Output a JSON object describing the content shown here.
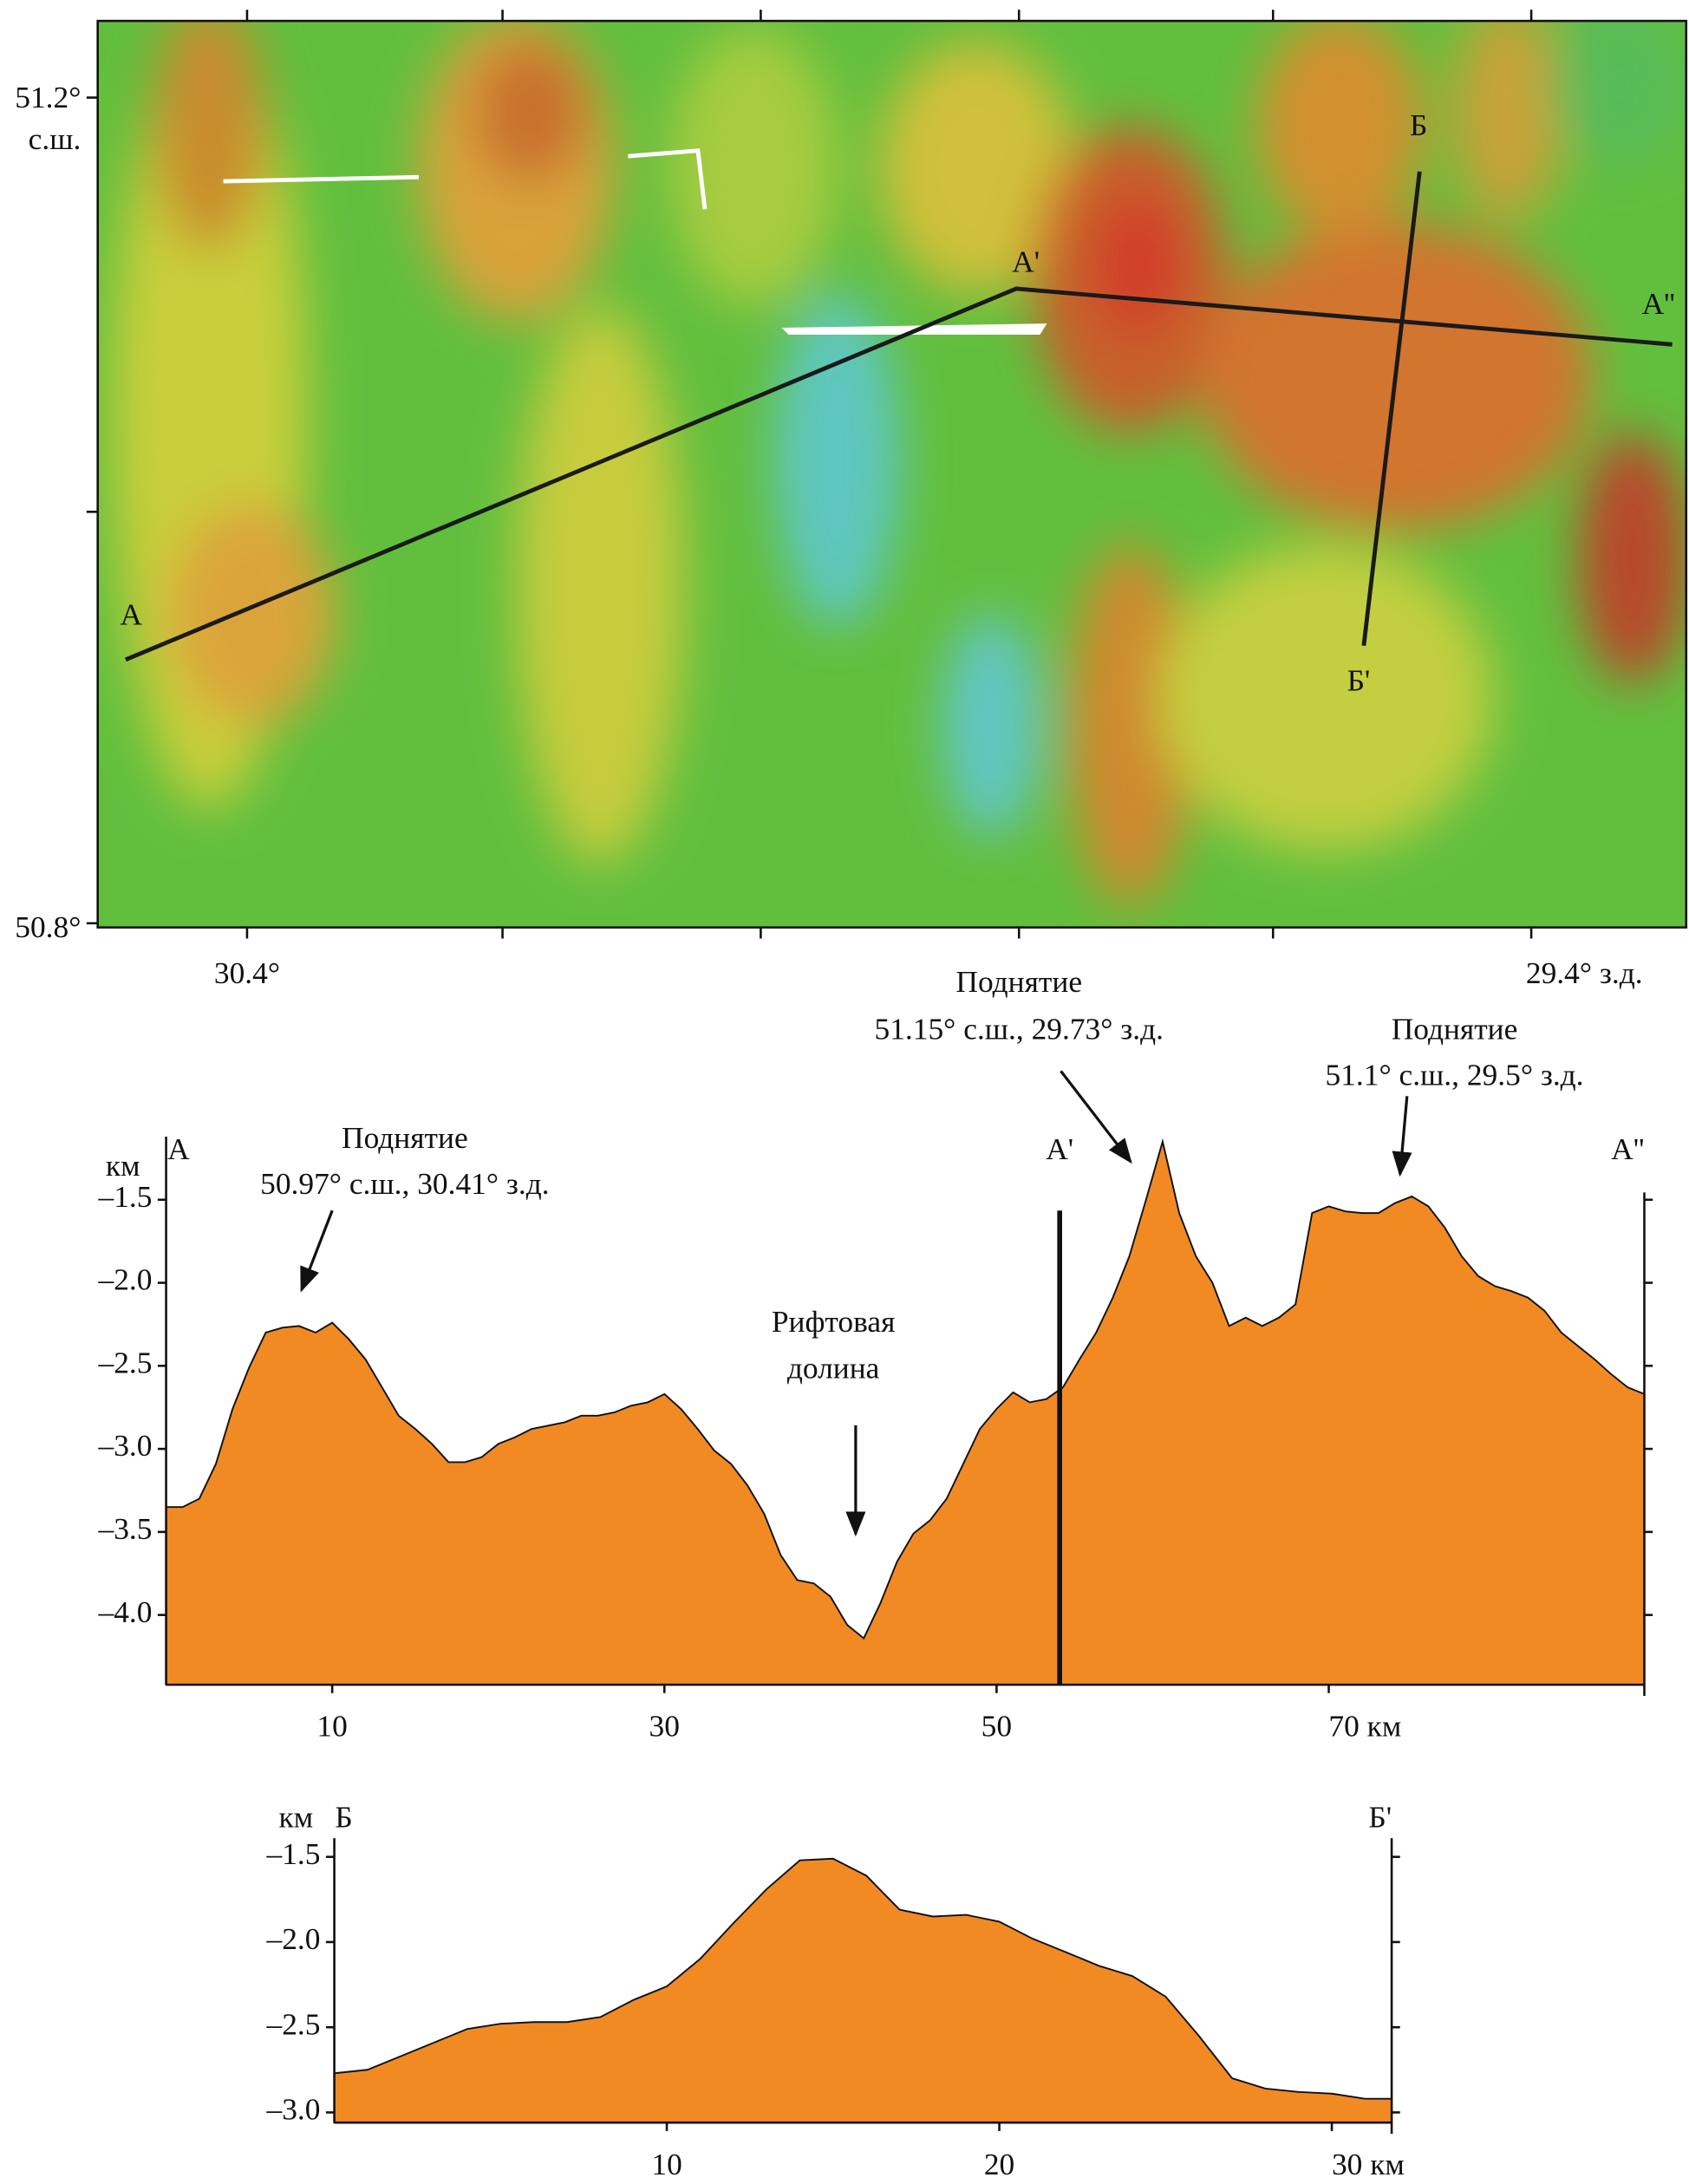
{
  "map": {
    "lat_labels": [
      "51.2°",
      "с.ш.",
      "50.8°"
    ],
    "lon_labels": [
      "30.4°",
      "29.4° з.д."
    ],
    "point_labels": [
      "А",
      "А'",
      "А''",
      "Б",
      "Б'"
    ]
  },
  "chart_data": [
    {
      "type": "area",
      "color": "#f28a24",
      "y_label": "км",
      "end_labels": [
        "А",
        "А''"
      ],
      "section_marker": {
        "label": "А'",
        "x": 53.8
      },
      "annotations": [
        [
          "Поднятие",
          "50.97° с.ш., 30.41° з.д."
        ],
        [
          "Рифтовая",
          "долина"
        ],
        [
          "Поднятие",
          "51.15° с.ш., 29.73° з.д."
        ],
        [
          "Поднятие",
          "51.1° с.ш., 29.5° з.д."
        ]
      ],
      "x": [
        0,
        1,
        2,
        3,
        4,
        5,
        6,
        7,
        8,
        9,
        10,
        11,
        12,
        13,
        14,
        15,
        16,
        17,
        18,
        19,
        20,
        21,
        22,
        23,
        24,
        25,
        26,
        27,
        28,
        29,
        30,
        31,
        32,
        33,
        34,
        35,
        36,
        37,
        38,
        39,
        40,
        41,
        42,
        43,
        44,
        45,
        46,
        47,
        48,
        49,
        50,
        51,
        52,
        53,
        54,
        55,
        56,
        57,
        58,
        59,
        60,
        61,
        62,
        63,
        64,
        65,
        66,
        67,
        68,
        69,
        70,
        71,
        72,
        73,
        74,
        75,
        76,
        77,
        78,
        79,
        80,
        81,
        82,
        83,
        84,
        85,
        86,
        87,
        88,
        89
      ],
      "values": [
        -3.35,
        -3.35,
        -3.3,
        -3.09,
        -2.76,
        -2.51,
        -2.3,
        -2.27,
        -2.26,
        -2.3,
        -2.24,
        -2.34,
        -2.46,
        -2.63,
        -2.8,
        -2.88,
        -2.97,
        -3.08,
        -3.08,
        -3.05,
        -2.97,
        -2.93,
        -2.88,
        -2.86,
        -2.84,
        -2.8,
        -2.8,
        -2.78,
        -2.74,
        -2.72,
        -2.67,
        -2.76,
        -2.88,
        -3.01,
        -3.09,
        -3.22,
        -3.39,
        -3.64,
        -3.79,
        -3.81,
        -3.89,
        -4.06,
        -4.14,
        -3.93,
        -3.68,
        -3.51,
        -3.43,
        -3.3,
        -3.09,
        -2.88,
        -2.76,
        -2.66,
        -2.72,
        -2.7,
        -2.63,
        -2.46,
        -2.3,
        -2.09,
        -1.84,
        -1.5,
        -1.15,
        -1.58,
        -1.84,
        -2.0,
        -2.26,
        -2.21,
        -2.26,
        -2.21,
        -2.13,
        -1.58,
        -1.54,
        -1.57,
        -1.58,
        -1.58,
        -1.52,
        -1.48,
        -1.54,
        -1.67,
        -1.84,
        -1.96,
        -2.02,
        -2.05,
        -2.09,
        -2.17,
        -2.3,
        -2.38,
        -2.46,
        -2.55,
        -2.63,
        -2.67
      ],
      "xlim": [
        0,
        89
      ],
      "ylim": [
        -4.42,
        -1.12
      ],
      "xticks": [
        10,
        30,
        50,
        {
          "value": 70,
          "label": "70 км"
        }
      ],
      "yticks": [
        {
          "value": -1.5,
          "label": "–1.5"
        },
        {
          "value": -2.0,
          "label": "–2.0"
        },
        {
          "value": -2.5,
          "label": "–2.5"
        },
        {
          "value": -3.0,
          "label": "–3.0"
        },
        {
          "value": -3.5,
          "label": "–3.5"
        },
        {
          "value": -4.0,
          "label": "–4.0"
        }
      ]
    },
    {
      "type": "area",
      "color": "#f28a24",
      "y_label": "км",
      "end_labels": [
        "Б",
        "Б'"
      ],
      "annotations": [],
      "x": [
        0,
        1,
        2,
        3,
        4,
        5,
        6,
        7,
        8,
        9,
        10,
        11,
        12,
        13,
        14,
        15,
        16,
        17,
        18,
        19,
        20,
        21,
        22,
        23,
        24,
        25,
        26,
        27,
        28,
        29,
        30,
        31,
        31.8
      ],
      "values": [
        -2.77,
        -2.75,
        -2.67,
        -2.59,
        -2.51,
        -2.48,
        -2.47,
        -2.47,
        -2.44,
        -2.34,
        -2.26,
        -2.1,
        -1.89,
        -1.69,
        -1.52,
        -1.51,
        -1.61,
        -1.81,
        -1.85,
        -1.84,
        -1.88,
        -1.98,
        -2.06,
        -2.14,
        -2.2,
        -2.32,
        -2.55,
        -2.8,
        -2.86,
        -2.88,
        -2.89,
        -2.92,
        -2.92
      ],
      "xlim": [
        0,
        31.8
      ],
      "ylim": [
        -3.06,
        -1.39
      ],
      "xticks": [
        10,
        20,
        {
          "value": 30,
          "label": "30 км"
        }
      ],
      "yticks": [
        {
          "value": -1.5,
          "label": "–1.5"
        },
        {
          "value": -2.0,
          "label": "–2.0"
        },
        {
          "value": -2.5,
          "label": "–2.5"
        },
        {
          "value": -3.0,
          "label": "–3.0"
        }
      ]
    }
  ]
}
